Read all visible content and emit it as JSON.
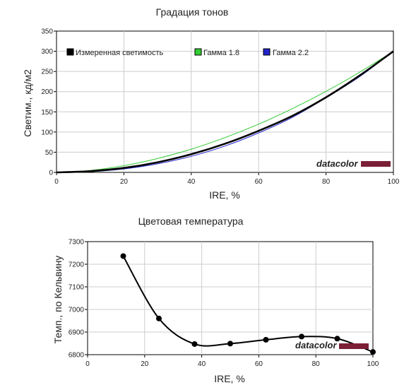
{
  "chart_data": [
    {
      "type": "line",
      "title": "Градация тонов",
      "xlabel": "IRE, %",
      "ylabel": "Светим., кд/м2",
      "xlim": [
        0,
        100
      ],
      "ylim": [
        0,
        350
      ],
      "xticks": [
        0,
        20,
        40,
        60,
        80,
        100
      ],
      "yticks": [
        0,
        50,
        100,
        150,
        200,
        250,
        300,
        350
      ],
      "grid": true,
      "legend_position": "top",
      "watermark": "datacolor",
      "x": [
        0,
        10,
        20,
        30,
        40,
        50,
        60,
        70,
        80,
        90,
        100
      ],
      "series": [
        {
          "name": "Измеренная светимость",
          "color": "#000000",
          "values": [
            0,
            3,
            11,
            25,
            45,
            71,
            103,
            140,
            186,
            240,
            300
          ]
        },
        {
          "name": "Гамма 1.8",
          "color": "#33cc33",
          "values": [
            0,
            4.8,
            16.6,
            34.4,
            57.6,
            86.1,
            119.5,
            157.8,
            200.7,
            248.3,
            300
          ]
        },
        {
          "name": "Гамма 2.2",
          "color": "#2222cc",
          "values": [
            0,
            1.9,
            8.6,
            21.2,
            39.9,
            65.3,
            97.8,
            136.2,
            184.7,
            237.3,
            300
          ]
        }
      ]
    },
    {
      "type": "line",
      "title": "Цветовая температура",
      "xlabel": "IRE, %",
      "ylabel": "Темп., по Кельвину",
      "xlim": [
        0,
        100
      ],
      "ylim": [
        6800,
        7300
      ],
      "xticks": [
        0,
        20,
        40,
        60,
        80,
        100
      ],
      "yticks": [
        6800,
        6900,
        7000,
        7100,
        7200,
        7300
      ],
      "grid": true,
      "watermark": "datacolor",
      "series": [
        {
          "color": "#000000",
          "x": [
            12.5,
            25,
            37.5,
            50,
            62.5,
            75,
            87.5,
            100
          ],
          "values": [
            7236,
            6960,
            6847,
            6849,
            6866,
            6880,
            6871,
            6812
          ]
        }
      ]
    }
  ]
}
